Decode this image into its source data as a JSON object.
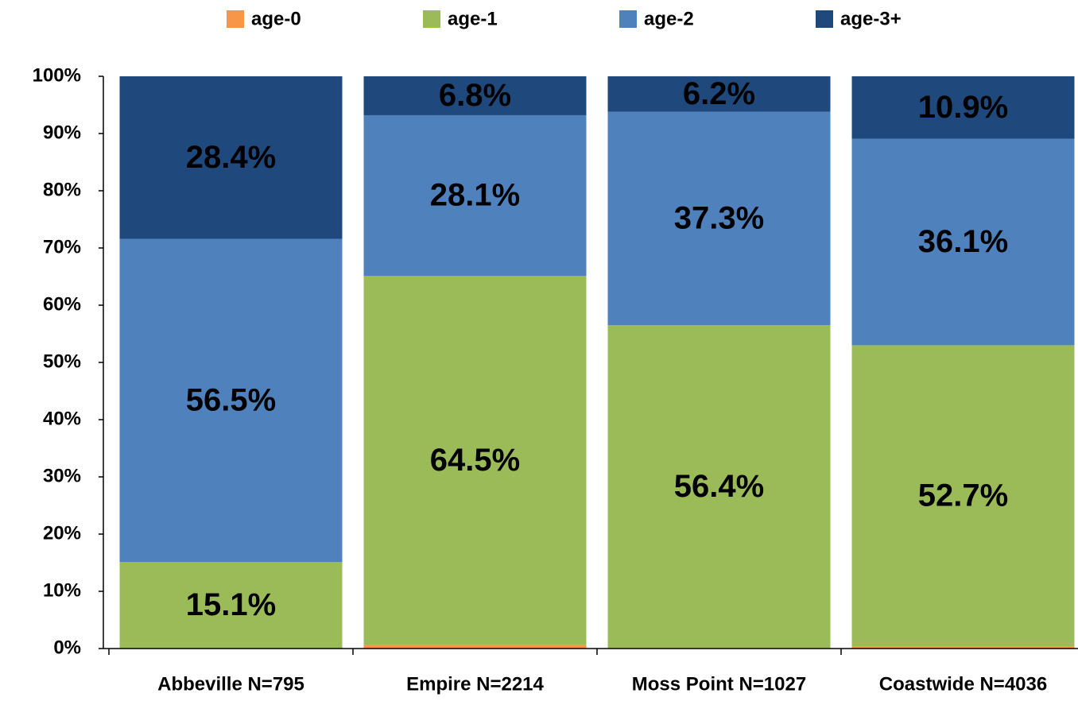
{
  "chart_data": {
    "type": "stacked_bar",
    "categories": [
      "Abbeville N=795",
      "Empire N=2214",
      "Moss Point N=1027",
      "Coastwide N=4036"
    ],
    "series": [
      {
        "name": "age-0",
        "color": "#f79646",
        "values": [
          0,
          0.6,
          0.1,
          0.3
        ]
      },
      {
        "name": "age-1",
        "color": "#9bbb59",
        "values": [
          15.1,
          64.5,
          56.4,
          52.7
        ],
        "value_labels": [
          "15.1%",
          "64.5%",
          "56.4%",
          "52.7%"
        ]
      },
      {
        "name": "age-2",
        "color": "#4f81bd",
        "values": [
          56.5,
          28.1,
          37.3,
          36.1
        ],
        "value_labels": [
          "56.5%",
          "28.1%",
          "37.3%",
          "36.1%"
        ]
      },
      {
        "name": "age-3+",
        "color": "#1f497d",
        "values": [
          28.4,
          6.8,
          6.2,
          10.9
        ],
        "value_labels": [
          "28.4%",
          "6.8%",
          "6.2%",
          "10.9%"
        ]
      }
    ],
    "ylim": [
      0,
      100
    ],
    "yticks": [
      {
        "value": 0,
        "label": "0%"
      },
      {
        "value": 10,
        "label": "10%"
      },
      {
        "value": 20,
        "label": "20%"
      },
      {
        "value": 30,
        "label": "30%"
      },
      {
        "value": 40,
        "label": "40%"
      },
      {
        "value": 50,
        "label": "50%"
      },
      {
        "value": 60,
        "label": "60%"
      },
      {
        "value": 70,
        "label": "70%"
      },
      {
        "value": 80,
        "label": "80%"
      },
      {
        "value": 90,
        "label": "90%"
      },
      {
        "value": 100,
        "label": "100%"
      }
    ],
    "legend": "top"
  }
}
